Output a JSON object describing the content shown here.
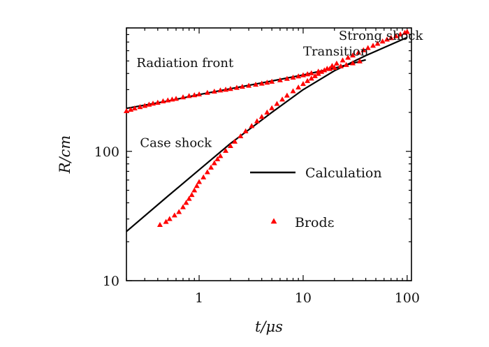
{
  "chart_data": {
    "type": "scatter",
    "scale": {
      "x": "log",
      "y": "log"
    },
    "xlim": [
      0.2,
      110
    ],
    "ylim": [
      10,
      900
    ],
    "xlabel": "t/μs",
    "ylabel": "R/cm",
    "xticks": [
      {
        "value": 1,
        "label": "1"
      },
      {
        "value": 10,
        "label": "10"
      },
      {
        "value": 100,
        "label": "100"
      }
    ],
    "yticks": [
      {
        "value": 10,
        "label": "10"
      },
      {
        "value": 100,
        "label": "100"
      }
    ],
    "annotations": [
      {
        "text": "Strong shock",
        "x": 22,
        "y": 730
      },
      {
        "text": "Transition",
        "x": 10,
        "y": 550
      },
      {
        "text": "Radiation front",
        "x": 0.25,
        "y": 450
      },
      {
        "text": "Case shock",
        "x": 0.27,
        "y": 108
      }
    ],
    "legend": {
      "position": "center-right",
      "entries": [
        {
          "label": "Calculation",
          "marker": "line",
          "color": "#000000"
        },
        {
          "label": "Brodε",
          "marker": "triangle",
          "color": "#ff0000"
        }
      ]
    },
    "series": [
      {
        "name": "Calculation",
        "style": "line",
        "color": "#000000",
        "segments": [
          {
            "x": [
              0.2,
              0.5,
              1,
              2,
              5,
              10,
              20,
              40
            ],
            "y": [
              215,
              245,
              275,
              305,
              350,
              390,
              440,
              510
            ]
          },
          {
            "x": [
              0.2,
              0.5,
              1,
              2,
              5,
              10,
              20,
              40,
              100
            ],
            "y": [
              24,
              45,
              72,
              115,
              200,
              300,
              420,
              550,
              760
            ]
          }
        ]
      },
      {
        "name": "Brodε",
        "style": "markers",
        "marker": "triangle",
        "color": "#ff0000",
        "segments": [
          {
            "x": [
              0.2,
              0.22,
              0.24,
              0.27,
              0.3,
              0.33,
              0.36,
              0.4,
              0.45,
              0.5,
              0.55,
              0.6,
              0.7,
              0.8,
              0.9,
              1.0,
              1.2,
              1.4,
              1.6,
              1.8,
              2.0,
              2.3,
              2.6,
              3.0,
              3.5,
              4.0,
              4.5,
              5.0,
              6.0,
              7.0,
              8.0,
              9.0,
              10,
              11,
              12,
              14,
              16,
              18,
              20,
              23,
              26,
              30,
              35
            ],
            "y": [
              205,
              210,
              215,
              220,
              225,
              230,
              234,
              238,
              244,
              248,
              252,
              255,
              262,
              268,
              272,
              276,
              284,
              290,
              296,
              300,
              304,
              310,
              316,
              322,
              328,
              334,
              340,
              346,
              355,
              364,
              372,
              380,
              388,
              395,
              402,
              414,
              424,
              434,
              443,
              455,
              466,
              480,
              497
            ]
          },
          {
            "x": [
              0.42,
              0.48,
              0.52,
              0.58,
              0.64,
              0.7,
              0.75,
              0.8,
              0.85,
              0.9,
              0.95,
              1.0,
              1.1,
              1.2,
              1.3,
              1.4,
              1.5,
              1.6,
              1.8,
              2.0,
              2.2,
              2.5,
              2.8,
              3.2,
              3.6,
              4.0,
              4.5,
              5.0,
              5.6,
              6.3,
              7.0,
              8.0,
              9.0,
              10,
              11,
              12,
              13,
              14,
              15,
              17,
              19,
              21,
              24,
              27,
              30,
              34,
              38,
              42,
              47,
              52,
              58,
              64,
              70,
              78,
              86,
              95,
              100
            ],
            "y": [
              27,
              28.5,
              30,
              32,
              34,
              37,
              40,
              43,
              46,
              50,
              54,
              58,
              63,
              69,
              75,
              81,
              87,
              92,
              101,
              110,
              119,
              131,
              143,
              157,
              171,
              185,
              200,
              216,
              233,
              252,
              270,
              292,
              312,
              332,
              350,
              366,
              382,
              398,
              412,
              436,
              458,
              478,
              505,
              530,
              552,
              580,
              606,
              630,
              656,
              680,
              708,
              732,
              752,
              778,
              802,
              826,
              840
            ]
          }
        ]
      }
    ]
  }
}
